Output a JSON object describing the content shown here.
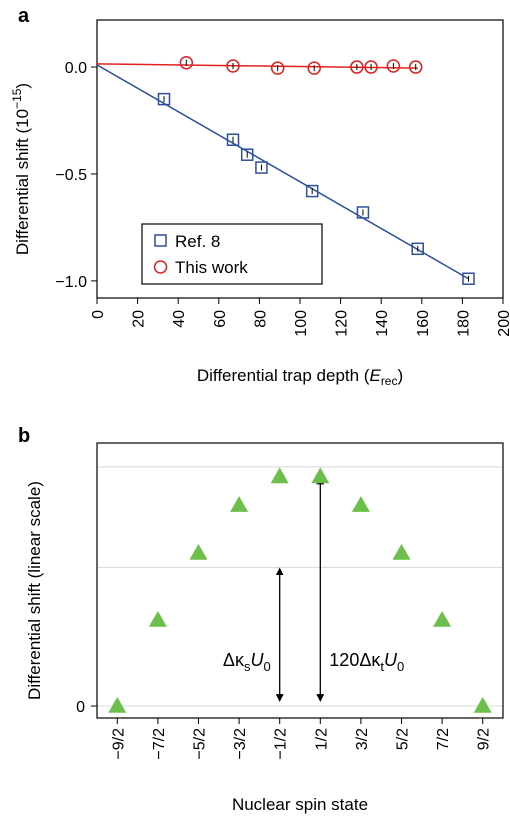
{
  "colors": {
    "ref8": "#2e4f9c",
    "this_work": "#e02020",
    "triangle": "#6cbf4a",
    "grid": "#d8d8d8",
    "axis": "#000000"
  },
  "chart_data": [
    {
      "panel": "a",
      "type": "scatter",
      "xlabel_main": "Differential trap depth (",
      "xlabel_sym": "E",
      "xlabel_sub": "rec",
      "xlabel_close": ")",
      "ylabel_main": "Differential shift (10",
      "ylabel_sup": "−15",
      "ylabel_close": ")",
      "xlim": [
        0,
        200
      ],
      "ylim": [
        -1.08,
        0.22
      ],
      "x_ticks": [
        0,
        20,
        40,
        60,
        80,
        100,
        120,
        140,
        160,
        180,
        200
      ],
      "x_tick_labels": [
        "0",
        "20",
        "40",
        "60",
        "80",
        "100",
        "120",
        "140",
        "160",
        "180",
        "200"
      ],
      "y_ticks": [
        0.0,
        -0.5,
        -1.0
      ],
      "y_tick_labels": [
        "0.0",
        "−0.5",
        "−1.0"
      ],
      "legend_position": "lower-left",
      "series": [
        {
          "name": "Ref. 8",
          "marker": "square",
          "x": [
            33,
            67,
            74,
            81,
            106,
            131,
            158,
            183
          ],
          "y": [
            -0.15,
            -0.34,
            -0.41,
            -0.47,
            -0.58,
            -0.68,
            -0.85,
            -0.99
          ],
          "fit": {
            "x": [
              0,
              183
            ],
            "y": [
              0.01,
              -0.99
            ]
          }
        },
        {
          "name": "This work",
          "marker": "circle",
          "x": [
            44,
            67,
            89,
            107,
            128,
            135,
            146,
            157
          ],
          "y": [
            0.02,
            0.005,
            -0.005,
            -0.005,
            0.0,
            0.0,
            0.005,
            0.0
          ],
          "fit": {
            "x": [
              0,
              158
            ],
            "y": [
              0.015,
              -0.005
            ]
          }
        }
      ]
    },
    {
      "panel": "b",
      "type": "scatter",
      "xlabel": "Nuclear spin state",
      "ylabel": "Differential shift (linear scale)",
      "categories": [
        "−9/2",
        "−7/2",
        "−5/2",
        "−3/2",
        "−1/2",
        "1/2",
        "3/2",
        "5/2",
        "7/2",
        "9/2"
      ],
      "m_values": [
        -4.5,
        -3.5,
        -2.5,
        -1.5,
        -0.5,
        0.5,
        1.5,
        2.5,
        3.5,
        4.5
      ],
      "y_ticks": [
        0
      ],
      "y_tick_labels": [
        "0"
      ],
      "ylim": [
        -0.05,
        1.1
      ],
      "gridlines_y": [
        0.58,
        1.0
      ],
      "values": [
        0.0,
        0.36,
        0.64,
        0.84,
        0.96,
        0.96,
        0.84,
        0.64,
        0.36,
        0.0
      ],
      "annotations": [
        {
          "m": -0.5,
          "from": 0.0,
          "to": 0.58,
          "label_main": "Δκ",
          "label_sub": "s",
          "label_tail": "U",
          "label_sub2": "0"
        },
        {
          "m": 0.5,
          "from": 0.0,
          "to": 0.96,
          "label_main": "120Δκ",
          "label_sub": "t",
          "label_tail": "U",
          "label_sub2": "0"
        }
      ]
    }
  ]
}
